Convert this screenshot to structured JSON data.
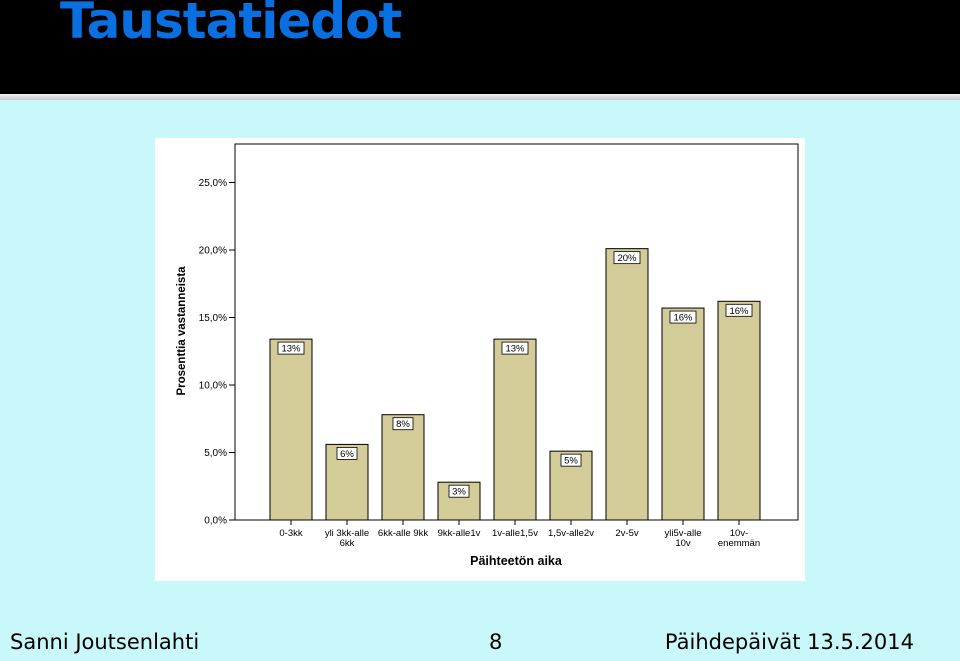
{
  "slide": {
    "title": "Taustatiedot"
  },
  "footer": {
    "author": "Sanni Joutsenlahti",
    "page": "8",
    "event": "Päihdepäivät 13.5.2014"
  },
  "colors": {
    "title": "#0a6fe0",
    "background": "#c8f8fa",
    "bar_fill": "#d4cc98",
    "bar_stroke": "#000000"
  },
  "chart_data": {
    "type": "bar",
    "xlabel": "Päihteetön aika",
    "ylabel": "Prosenttia vastanneista",
    "ylim": [
      0,
      27.5
    ],
    "yticks": [
      0,
      5,
      10,
      15,
      20,
      25
    ],
    "ytick_labels": [
      "0,0%",
      "5,0%",
      "10,0%",
      "15,0%",
      "20,0%",
      "25,0%"
    ],
    "grid": false,
    "categories": [
      [
        "0-3kk"
      ],
      [
        "yli 3kk-alle",
        "6kk"
      ],
      [
        "6kk-alle 9kk"
      ],
      [
        "9kk-alle1v"
      ],
      [
        "1v-alle1,5v"
      ],
      [
        "1,5v-alle2v"
      ],
      [
        "2v-5v"
      ],
      [
        "yli5v-alle",
        "10v"
      ],
      [
        "10v-",
        "enemmän"
      ]
    ],
    "values": [
      13.4,
      5.6,
      7.8,
      2.8,
      13.4,
      5.1,
      20.1,
      15.7,
      16.2
    ],
    "data_labels": [
      "13%",
      "6%",
      "8%",
      "3%",
      "13%",
      "5%",
      "20%",
      "16%",
      "16%"
    ]
  }
}
